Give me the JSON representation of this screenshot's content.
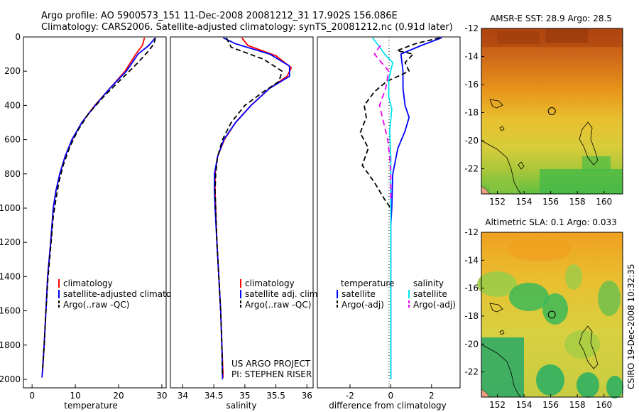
{
  "header": {
    "line1": "Argo profile: AO 5900573_151 11-Dec-2008 20081212_31 17.902S 156.086E",
    "line2": "Climatology: CARS2006. Satellite-adjusted climatology: synTS_20081212.nc (0.91d later)"
  },
  "credit": "CSIRO 19-Dec-2008 10:32:35",
  "colors": {
    "climatology": "#ff0000",
    "satellite": "#0000ff",
    "argo": "#000000",
    "cyan": "#00e5ee",
    "magenta": "#ee00ee"
  },
  "chart_data": [
    {
      "type": "line",
      "id": "temperature",
      "xlabel": "temperature",
      "ylabel": "",
      "xlim": [
        -2,
        31
      ],
      "ylim": [
        2050,
        0
      ],
      "xticks": [
        0,
        10,
        20,
        30
      ],
      "yticks": [
        0,
        200,
        400,
        600,
        800,
        1000,
        1200,
        1400,
        1600,
        1800,
        2000
      ],
      "legend": [
        "climatology",
        "satellite-adjusted climatology",
        "Argo(..raw -QC)"
      ],
      "series": [
        {
          "name": "climatology",
          "color": "#ff0000",
          "dash": "",
          "points": [
            [
              26.0,
              5
            ],
            [
              25.5,
              50
            ],
            [
              24.0,
              100
            ],
            [
              21.5,
              200
            ],
            [
              18.0,
              300
            ],
            [
              14.5,
              400
            ],
            [
              11.5,
              500
            ],
            [
              9.3,
              600
            ],
            [
              7.6,
              700
            ],
            [
              6.4,
              800
            ],
            [
              5.5,
              900
            ],
            [
              4.9,
              1000
            ],
            [
              4.3,
              1200
            ],
            [
              3.6,
              1400
            ],
            [
              3.2,
              1600
            ],
            [
              2.8,
              1800
            ],
            [
              2.4,
              1970
            ]
          ]
        },
        {
          "name": "satellite-adjusted climatology",
          "color": "#0000ff",
          "dash": "",
          "points": [
            [
              28.5,
              5
            ],
            [
              27.0,
              50
            ],
            [
              24.5,
              100
            ],
            [
              21.8,
              200
            ],
            [
              18.0,
              300
            ],
            [
              14.6,
              400
            ],
            [
              11.5,
              500
            ],
            [
              9.2,
              600
            ],
            [
              7.6,
              700
            ],
            [
              6.4,
              800
            ],
            [
              5.5,
              900
            ],
            [
              4.9,
              1000
            ],
            [
              4.3,
              1200
            ],
            [
              3.6,
              1400
            ],
            [
              3.2,
              1600
            ],
            [
              2.8,
              1800
            ],
            [
              2.3,
              1990
            ]
          ]
        },
        {
          "name": "Argo(..raw -QC)",
          "color": "#000000",
          "dash": "7 4",
          "points": [
            [
              28.5,
              5
            ],
            [
              28.2,
              40
            ],
            [
              27.0,
              80
            ],
            [
              24.5,
              150
            ],
            [
              20.5,
              250
            ],
            [
              16.5,
              350
            ],
            [
              13.0,
              450
            ],
            [
              10.5,
              550
            ],
            [
              8.6,
              650
            ],
            [
              7.2,
              750
            ],
            [
              6.2,
              850
            ],
            [
              5.5,
              950
            ],
            [
              4.9,
              1050
            ],
            [
              4.4,
              1200
            ],
            [
              3.7,
              1400
            ],
            [
              3.2,
              1600
            ],
            [
              2.8,
              1800
            ],
            [
              2.4,
              1950
            ]
          ]
        }
      ]
    },
    {
      "type": "line",
      "id": "salinity",
      "xlabel": "salinity",
      "ylabel": "",
      "xlim": [
        33.8,
        36.1
      ],
      "ylim": [
        2050,
        0
      ],
      "xticks": [
        34,
        34.5,
        35,
        35.5,
        36
      ],
      "yticks": [],
      "legend": [
        "climatology",
        "satellite adj. clim.",
        "Argo(..raw -QC)"
      ],
      "annotation": [
        "US ARGO PROJECT",
        "PI: STEPHEN RISER"
      ],
      "series": [
        {
          "name": "climatology",
          "color": "#ff0000",
          "dash": "",
          "points": [
            [
              34.95,
              5
            ],
            [
              35.05,
              50
            ],
            [
              35.5,
              110
            ],
            [
              35.75,
              180
            ],
            [
              35.68,
              230
            ],
            [
              35.4,
              300
            ],
            [
              35.1,
              400
            ],
            [
              34.85,
              500
            ],
            [
              34.67,
              600
            ],
            [
              34.56,
              700
            ],
            [
              34.52,
              800
            ],
            [
              34.52,
              900
            ],
            [
              34.53,
              1000
            ],
            [
              34.55,
              1200
            ],
            [
              34.58,
              1400
            ],
            [
              34.61,
              1600
            ],
            [
              34.63,
              1800
            ],
            [
              34.65,
              1990
            ]
          ]
        },
        {
          "name": "satellite adj. clim.",
          "color": "#0000ff",
          "dash": "",
          "points": [
            [
              34.65,
              5
            ],
            [
              34.85,
              40
            ],
            [
              35.4,
              100
            ],
            [
              35.72,
              170
            ],
            [
              35.72,
              230
            ],
            [
              35.4,
              300
            ],
            [
              35.1,
              400
            ],
            [
              34.85,
              500
            ],
            [
              34.66,
              600
            ],
            [
              34.56,
              700
            ],
            [
              34.51,
              800
            ],
            [
              34.51,
              900
            ],
            [
              34.52,
              1000
            ],
            [
              34.55,
              1200
            ],
            [
              34.58,
              1400
            ],
            [
              34.61,
              1600
            ],
            [
              34.63,
              1800
            ],
            [
              34.64,
              2000
            ]
          ]
        },
        {
          "name": "Argo(..raw -QC)",
          "color": "#000000",
          "dash": "7 4",
          "points": [
            [
              34.7,
              5
            ],
            [
              34.78,
              60
            ],
            [
              35.3,
              130
            ],
            [
              35.6,
              200
            ],
            [
              35.55,
              260
            ],
            [
              35.3,
              320
            ],
            [
              35.0,
              400
            ],
            [
              34.78,
              500
            ],
            [
              34.64,
              600
            ],
            [
              34.56,
              700
            ],
            [
              34.53,
              800
            ],
            [
              34.52,
              900
            ],
            [
              34.53,
              1000
            ],
            [
              34.55,
              1200
            ],
            [
              34.58,
              1400
            ],
            [
              34.61,
              1600
            ],
            [
              34.63,
              1800
            ],
            [
              34.64,
              1980
            ]
          ]
        }
      ]
    },
    {
      "type": "line",
      "id": "difference",
      "xlabel": "difference from climatology",
      "ylabel": "",
      "xlim": [
        -3.6,
        3.4
      ],
      "ylim": [
        2050,
        0
      ],
      "xticks": [
        -2,
        0,
        2
      ],
      "yticks": [],
      "legend_headers": [
        "temperature",
        "salinity"
      ],
      "legend": [
        "satellite",
        "Argo(-adj)",
        "satellite",
        "Argo(-adj)"
      ],
      "series": [
        {
          "name": "temperature satellite",
          "color": "#0000ff",
          "dash": "",
          "points": [
            [
              2.5,
              5
            ],
            [
              1.5,
              50
            ],
            [
              0.5,
              100
            ],
            [
              0.6,
              200
            ],
            [
              0.6,
              300
            ],
            [
              0.7,
              400
            ],
            [
              0.9,
              470
            ],
            [
              0.7,
              550
            ],
            [
              0.35,
              650
            ],
            [
              0.1,
              800
            ],
            [
              0.05,
              1000
            ],
            [
              0,
              1100
            ],
            [
              0,
              2000
            ]
          ]
        },
        {
          "name": "temperature Argo(-adj)",
          "color": "#000000",
          "dash": "7 4",
          "points": [
            [
              2.4,
              5
            ],
            [
              1.2,
              40
            ],
            [
              0.3,
              80
            ],
            [
              1.1,
              100
            ],
            [
              0.7,
              150
            ],
            [
              0.9,
              200
            ],
            [
              -0.2,
              260
            ],
            [
              -0.8,
              320
            ],
            [
              -1.3,
              400
            ],
            [
              -1.2,
              470
            ],
            [
              -1.5,
              560
            ],
            [
              -1.1,
              650
            ],
            [
              -1.4,
              750
            ],
            [
              -0.8,
              850
            ],
            [
              -0.3,
              950
            ],
            [
              0,
              1000
            ],
            [
              0,
              1050
            ]
          ]
        },
        {
          "name": "salinity satellite",
          "color": "#00e5ee",
          "dash": "",
          "points": [
            [
              -0.9,
              5
            ],
            [
              -0.6,
              50
            ],
            [
              -0.3,
              100
            ],
            [
              0.1,
              150
            ],
            [
              -0.1,
              250
            ],
            [
              -0.1,
              350
            ],
            [
              0.05,
              420
            ],
            [
              -0.05,
              550
            ],
            [
              0,
              700
            ],
            [
              0,
              1000
            ],
            [
              0,
              2000
            ]
          ]
        },
        {
          "name": "salinity Argo(-adj)",
          "color": "#ee00ee",
          "dash": "8 5",
          "points": [
            [
              -0.5,
              50
            ],
            [
              -0.8,
              100
            ],
            [
              -0.1,
              200
            ],
            [
              -0.25,
              300
            ],
            [
              -0.55,
              400
            ],
            [
              -0.35,
              500
            ],
            [
              -0.15,
              600
            ],
            [
              -0.05,
              700
            ],
            [
              0,
              800
            ],
            [
              0,
              950
            ]
          ]
        }
      ]
    },
    {
      "type": "heatmap",
      "id": "sst_map",
      "title": "AMSR-E SST: 28.9 Argo: 28.5",
      "xlim": [
        150.8,
        161.4
      ],
      "ylim": [
        -23.8,
        -12
      ],
      "xticks": [
        152,
        154,
        156,
        158,
        160
      ],
      "yticks": [
        -12,
        -14,
        -16,
        -18,
        -20,
        -22
      ],
      "marker": [
        156.086,
        -17.902
      ]
    },
    {
      "type": "heatmap",
      "id": "sla_map",
      "title": "Altimetric SLA: 0.1 Argo: 0.033",
      "xlim": [
        150.8,
        161.4
      ],
      "ylim": [
        -23.8,
        -12
      ],
      "xticks": [
        152,
        154,
        156,
        158,
        160
      ],
      "yticks": [
        -12,
        -14,
        -16,
        -18,
        -20,
        -22
      ],
      "marker": [
        156.086,
        -17.902
      ]
    }
  ]
}
